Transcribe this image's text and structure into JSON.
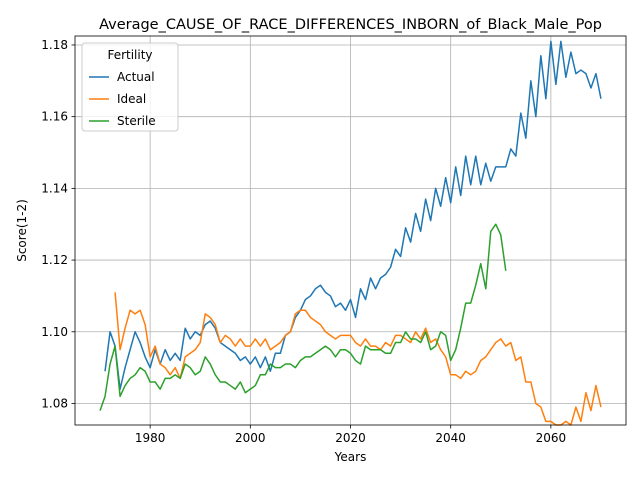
{
  "chart_data": {
    "type": "line",
    "title": "Average_CAUSE_OF_RACE_DIFFERENCES_INBORN_of_Black_Male_Pop",
    "xlabel": "Years",
    "ylabel": "Score(1-2)",
    "xlim": [
      1965,
      2075
    ],
    "ylim": [
      1.074,
      1.1825
    ],
    "x_ticks": [
      1980,
      2000,
      2020,
      2040,
      2060
    ],
    "y_ticks": [
      1.08,
      1.1,
      1.12,
      1.14,
      1.16,
      1.18
    ],
    "x_tick_labels": [
      "1980",
      "2000",
      "2020",
      "2040",
      "2060"
    ],
    "y_tick_labels": [
      "1.08",
      "1.10",
      "1.12",
      "1.14",
      "1.16",
      "1.18"
    ],
    "grid": true,
    "legend": {
      "title": "Fertility",
      "placement": "top-left"
    },
    "series": [
      {
        "name": "Actual",
        "color": "#1f77b4",
        "x": [
          1971,
          1972,
          1973,
          1974,
          1975,
          1976,
          1977,
          1978,
          1979,
          1980,
          1981,
          1982,
          1983,
          1984,
          1985,
          1986,
          1987,
          1988,
          1989,
          1990,
          1991,
          1992,
          1993,
          1994,
          1995,
          1996,
          1997,
          1998,
          1999,
          2000,
          2001,
          2002,
          2003,
          2004,
          2005,
          2006,
          2007,
          2008,
          2009,
          2010,
          2011,
          2012,
          2013,
          2014,
          2015,
          2016,
          2017,
          2018,
          2019,
          2020,
          2021,
          2022,
          2023,
          2024,
          2025,
          2026,
          2027,
          2028,
          2029,
          2030,
          2031,
          2032,
          2033,
          2034,
          2035,
          2036,
          2037,
          2038,
          2039,
          2040,
          2041,
          2042,
          2043,
          2044,
          2045,
          2046,
          2047,
          2048,
          2049,
          2050,
          2051,
          2052,
          2053,
          2054,
          2055,
          2056,
          2057,
          2058,
          2059,
          2060,
          2061,
          2062,
          2063,
          2064,
          2065,
          2066,
          2067,
          2068,
          2069,
          2070
        ],
        "values": [
          1.089,
          1.1,
          1.096,
          1.084,
          1.09,
          1.095,
          1.1,
          1.097,
          1.093,
          1.09,
          1.095,
          1.091,
          1.095,
          1.092,
          1.094,
          1.092,
          1.101,
          1.098,
          1.1,
          1.099,
          1.102,
          1.103,
          1.101,
          1.097,
          1.096,
          1.095,
          1.094,
          1.092,
          1.093,
          1.091,
          1.093,
          1.09,
          1.093,
          1.089,
          1.094,
          1.094,
          1.099,
          1.1,
          1.104,
          1.106,
          1.109,
          1.11,
          1.112,
          1.113,
          1.111,
          1.11,
          1.107,
          1.108,
          1.106,
          1.109,
          1.104,
          1.112,
          1.109,
          1.115,
          1.112,
          1.115,
          1.116,
          1.118,
          1.123,
          1.121,
          1.129,
          1.125,
          1.133,
          1.128,
          1.137,
          1.131,
          1.14,
          1.135,
          1.143,
          1.136,
          1.146,
          1.138,
          1.149,
          1.141,
          1.149,
          1.141,
          1.147,
          1.142,
          1.146,
          1.146,
          1.146,
          1.151,
          1.149,
          1.161,
          1.154,
          1.17,
          1.16,
          1.177,
          1.165,
          1.181,
          1.169,
          1.181,
          1.171,
          1.178,
          1.172,
          1.173,
          1.172,
          1.168,
          1.172,
          1.165
        ]
      },
      {
        "name": "Ideal",
        "color": "#ff7f0e",
        "x": [
          1973,
          1974,
          1975,
          1976,
          1977,
          1978,
          1979,
          1980,
          1981,
          1982,
          1983,
          1984,
          1985,
          1986,
          1987,
          1988,
          1989,
          1990,
          1991,
          1992,
          1993,
          1994,
          1995,
          1996,
          1997,
          1998,
          1999,
          2000,
          2001,
          2002,
          2003,
          2004,
          2005,
          2006,
          2007,
          2008,
          2009,
          2010,
          2011,
          2012,
          2013,
          2014,
          2015,
          2016,
          2017,
          2018,
          2019,
          2020,
          2021,
          2022,
          2023,
          2024,
          2025,
          2026,
          2027,
          2028,
          2029,
          2030,
          2031,
          2032,
          2033,
          2034,
          2035,
          2036,
          2037,
          2038,
          2039,
          2040,
          2041,
          2042,
          2043,
          2044,
          2045,
          2046,
          2047,
          2048,
          2049,
          2050,
          2051,
          2052,
          2053,
          2054,
          2055,
          2056,
          2057,
          2058,
          2059,
          2060,
          2061,
          2062,
          2063,
          2064,
          2065,
          2066,
          2067,
          2068,
          2069,
          2070
        ],
        "values": [
          1.111,
          1.095,
          1.101,
          1.106,
          1.105,
          1.106,
          1.102,
          1.093,
          1.096,
          1.091,
          1.09,
          1.088,
          1.09,
          1.087,
          1.093,
          1.094,
          1.095,
          1.097,
          1.105,
          1.104,
          1.102,
          1.097,
          1.099,
          1.098,
          1.096,
          1.098,
          1.096,
          1.096,
          1.098,
          1.096,
          1.098,
          1.095,
          1.096,
          1.097,
          1.099,
          1.1,
          1.105,
          1.106,
          1.106,
          1.104,
          1.103,
          1.102,
          1.1,
          1.099,
          1.098,
          1.099,
          1.099,
          1.099,
          1.097,
          1.096,
          1.098,
          1.096,
          1.096,
          1.095,
          1.097,
          1.096,
          1.099,
          1.099,
          1.098,
          1.097,
          1.1,
          1.098,
          1.101,
          1.097,
          1.098,
          1.095,
          1.093,
          1.088,
          1.088,
          1.087,
          1.089,
          1.088,
          1.089,
          1.092,
          1.093,
          1.095,
          1.097,
          1.098,
          1.096,
          1.097,
          1.092,
          1.093,
          1.086,
          1.086,
          1.08,
          1.079,
          1.075,
          1.075,
          1.074,
          1.074,
          1.075,
          1.074,
          1.079,
          1.075,
          1.083,
          1.078,
          1.085,
          1.079
        ]
      },
      {
        "name": "Sterile",
        "color": "#2ca02c",
        "x": [
          1970,
          1971,
          1972,
          1973,
          1974,
          1975,
          1976,
          1977,
          1978,
          1979,
          1980,
          1981,
          1982,
          1983,
          1984,
          1985,
          1986,
          1987,
          1988,
          1989,
          1990,
          1991,
          1992,
          1993,
          1994,
          1995,
          1996,
          1997,
          1998,
          1999,
          2000,
          2001,
          2002,
          2003,
          2004,
          2005,
          2006,
          2007,
          2008,
          2009,
          2010,
          2011,
          2012,
          2013,
          2014,
          2015,
          2016,
          2017,
          2018,
          2019,
          2020,
          2021,
          2022,
          2023,
          2024,
          2025,
          2026,
          2027,
          2028,
          2029,
          2030,
          2031,
          2032,
          2033,
          2034,
          2035,
          2036,
          2037,
          2038,
          2039,
          2040,
          2041,
          2042,
          2043,
          2044,
          2045,
          2046,
          2047,
          2048,
          2049,
          2050,
          2051
        ],
        "values": [
          1.078,
          1.082,
          1.091,
          1.096,
          1.082,
          1.085,
          1.087,
          1.088,
          1.09,
          1.089,
          1.086,
          1.086,
          1.084,
          1.087,
          1.087,
          1.088,
          1.087,
          1.091,
          1.09,
          1.088,
          1.089,
          1.093,
          1.091,
          1.088,
          1.086,
          1.086,
          1.085,
          1.084,
          1.086,
          1.083,
          1.084,
          1.085,
          1.088,
          1.088,
          1.091,
          1.09,
          1.09,
          1.091,
          1.091,
          1.09,
          1.092,
          1.093,
          1.093,
          1.094,
          1.095,
          1.096,
          1.095,
          1.093,
          1.095,
          1.095,
          1.094,
          1.092,
          1.091,
          1.096,
          1.095,
          1.095,
          1.095,
          1.094,
          1.094,
          1.097,
          1.097,
          1.1,
          1.098,
          1.098,
          1.097,
          1.1,
          1.095,
          1.096,
          1.1,
          1.099,
          1.092,
          1.095,
          1.101,
          1.108,
          1.108,
          1.113,
          1.119,
          1.112,
          1.128,
          1.13,
          1.127,
          1.117
        ]
      }
    ]
  }
}
